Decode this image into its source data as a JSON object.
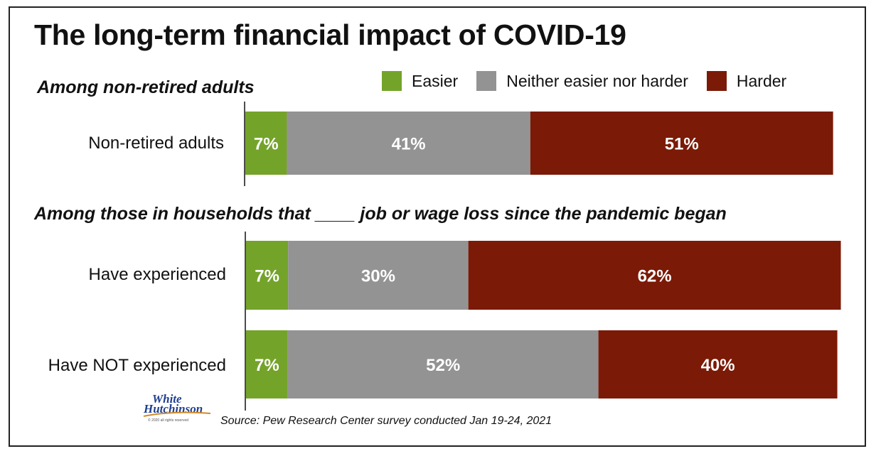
{
  "title": "The long-term financial impact of COVID-19",
  "legend": [
    {
      "label": "Easier",
      "color": "#74a32a"
    },
    {
      "label": "Neither easier nor harder",
      "color": "#939393"
    },
    {
      "label": "Harder",
      "color": "#7b1a07"
    }
  ],
  "sections": [
    {
      "heading": "Among non-retired adults"
    },
    {
      "heading": "Among those in households that ____ job or wage loss since the pandemic began"
    }
  ],
  "source": "Source: Pew Research Center survey conducted Jan 19-24, 2021",
  "logo": {
    "line1": "White",
    "line2": "Hutchinson",
    "line3": "© 2020 all rights reserved"
  },
  "chart_data": {
    "type": "bar",
    "orientation": "horizontal",
    "stacked": true,
    "title": "The long-term financial impact of COVID-19",
    "categories": [
      "Non-retired adults",
      "Have experienced",
      "Have NOT experienced"
    ],
    "series": [
      {
        "name": "Easier",
        "values": [
          7,
          7,
          7
        ],
        "color": "#74a32a"
      },
      {
        "name": "Neither easier nor harder",
        "values": [
          41,
          30,
          52
        ],
        "color": "#939393"
      },
      {
        "name": "Harder",
        "values": [
          51,
          62,
          40
        ],
        "color": "#7b1a07"
      }
    ],
    "value_suffix": "%",
    "legend_position": "top-right",
    "grid": false
  }
}
